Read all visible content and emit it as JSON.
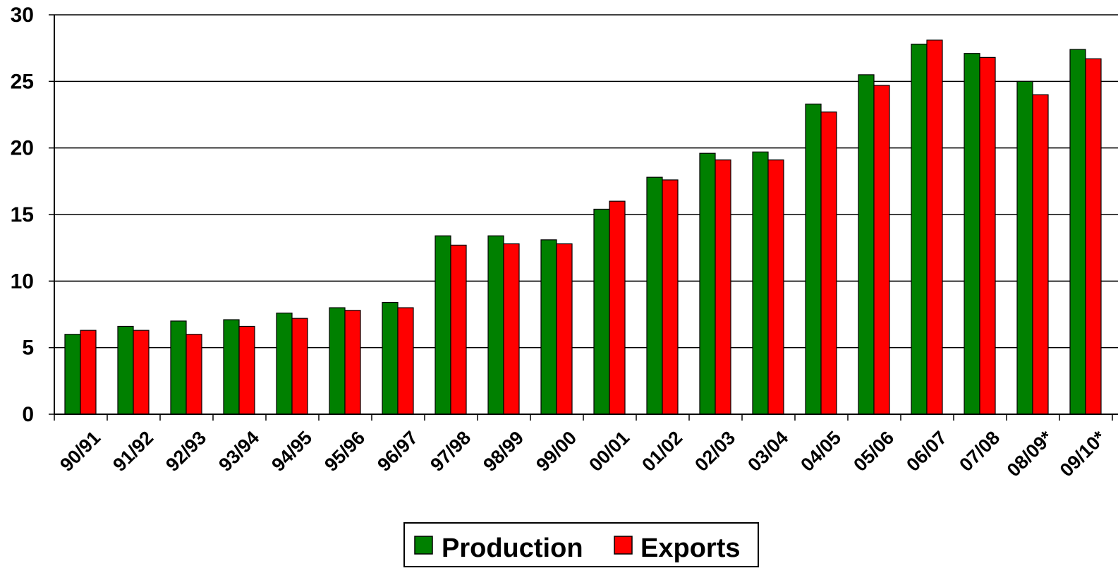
{
  "chart_data": {
    "type": "bar",
    "categories": [
      "90/91",
      "91/92",
      "92/93",
      "93/94",
      "94/95",
      "95/96",
      "96/97",
      "97/98",
      "98/99",
      "99/00",
      "00/01",
      "01/02",
      "02/03",
      "03/04",
      "04/05",
      "05/06",
      "06/07",
      "07/08",
      "08/09*",
      "09/10*"
    ],
    "series": [
      {
        "name": "Production",
        "color": "#008000",
        "values": [
          6.0,
          6.6,
          7.0,
          7.1,
          7.6,
          8.0,
          8.4,
          13.4,
          13.4,
          13.1,
          15.4,
          17.8,
          19.6,
          19.7,
          23.3,
          25.5,
          27.8,
          27.1,
          25.0,
          27.4
        ]
      },
      {
        "name": "Exports",
        "color": "#ff0000",
        "values": [
          6.3,
          6.3,
          6.0,
          6.6,
          7.2,
          7.8,
          8.0,
          12.7,
          12.8,
          12.8,
          16.0,
          17.6,
          19.1,
          19.1,
          22.7,
          24.7,
          28.1,
          26.8,
          24.0,
          26.7
        ]
      }
    ],
    "ylim": [
      0,
      30
    ],
    "yticks": [
      "0",
      "5",
      "10",
      "15",
      "20",
      "25",
      "30"
    ],
    "grid": true,
    "legend_position": "bottom-center",
    "title": "",
    "xlabel": "",
    "ylabel": ""
  }
}
